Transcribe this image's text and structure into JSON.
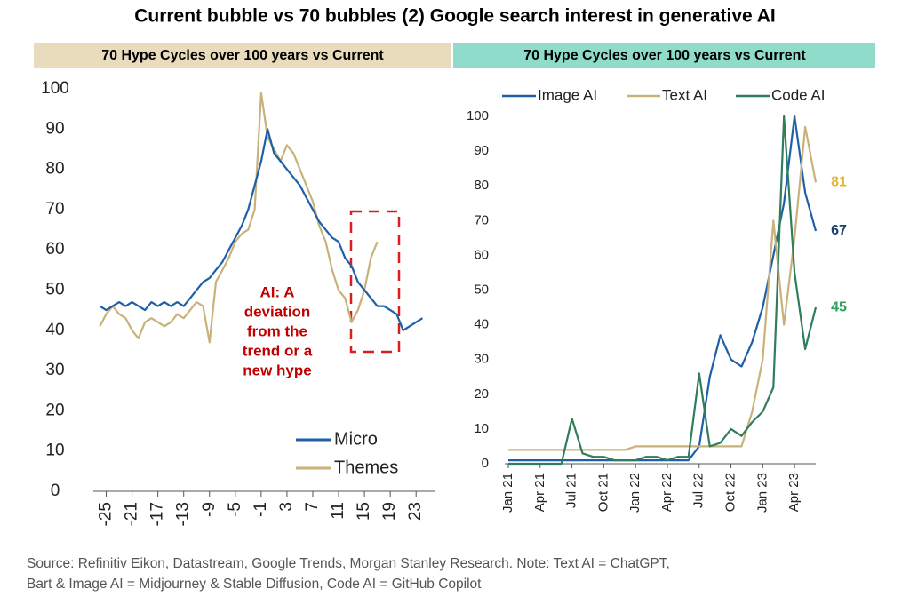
{
  "title": "Current bubble vs 70 bubbles (2) Google search interest in generative AI",
  "source": [
    "Source: Refinitiv Eikon, Datastream, Google Trends, Morgan Stanley Research. Note: Text AI = ChatGPT,",
    "Bart & Image AI = Midjourney & Stable Diffusion, Code AI = GitHub Copilot"
  ],
  "chart_data": [
    {
      "type": "line",
      "title": "70 Hype Cycles over 100 years vs Current",
      "annotation": [
        "AI: A",
        "deviation",
        "from the",
        "trend or a",
        "new hype"
      ],
      "x": [
        -26,
        -25,
        -24,
        -23,
        -22,
        -21,
        -20,
        -19,
        -18,
        -17,
        -16,
        -15,
        -14,
        -13,
        -12,
        -11,
        -10,
        -9,
        -8,
        -7,
        -6,
        -5,
        -4,
        -3,
        -2,
        -1,
        0,
        1,
        2,
        3,
        4,
        5,
        6,
        7,
        8,
        9,
        10,
        11,
        12,
        13,
        14,
        15,
        16,
        17,
        18,
        19,
        20,
        21,
        22,
        23,
        24
      ],
      "series": [
        {
          "name": "Micro",
          "color": "#1f5fa8",
          "values": [
            46,
            45,
            46,
            47,
            46,
            47,
            46,
            45,
            47,
            46,
            47,
            46,
            47,
            46,
            48,
            50,
            52,
            53,
            55,
            57,
            60,
            63,
            66,
            70,
            76,
            82,
            90,
            84,
            82,
            80,
            78,
            76,
            73,
            70,
            67,
            65,
            63,
            62,
            58,
            56,
            52,
            50,
            48,
            46,
            46,
            45,
            44,
            40,
            41,
            42,
            43
          ]
        },
        {
          "name": "Themes",
          "color": "#c9b27a",
          "values": [
            41,
            44,
            46,
            44,
            43,
            40,
            38,
            42,
            43,
            42,
            41,
            42,
            44,
            43,
            45,
            47,
            46,
            37,
            52,
            55,
            58,
            62,
            64,
            65,
            70,
            99,
            88,
            85,
            82,
            86,
            84,
            80,
            76,
            72,
            66,
            62,
            55,
            50,
            48,
            42,
            45,
            50,
            58,
            62,
            null,
            null,
            null,
            null,
            null,
            null,
            null
          ]
        }
      ],
      "xlim": [
        -27,
        26
      ],
      "ylim": [
        0,
        100
      ],
      "xticks": [
        -25,
        -21,
        -17,
        -13,
        -9,
        -5,
        -1,
        3,
        7,
        11,
        15,
        19,
        23
      ],
      "yticks": [
        0,
        10,
        20,
        30,
        40,
        50,
        60,
        70,
        80,
        90,
        100
      ]
    },
    {
      "type": "line",
      "title": "70 Hype Cycles over 100 years vs Current",
      "categories": [
        "Jan 21",
        null,
        null,
        "Apr 21",
        null,
        null,
        "Jul 21",
        null,
        null,
        "Oct 21",
        null,
        null,
        "Jan 22",
        null,
        null,
        "Apr 22",
        null,
        null,
        "Jul 22",
        null,
        null,
        "Oct 22",
        null,
        null,
        "Jan 23",
        null,
        null,
        "Apr 23",
        null,
        null
      ],
      "series": [
        {
          "name": "Image AI",
          "color": "#1f5fa8",
          "label_color": "#1a3e6e",
          "values": [
            1,
            1,
            1,
            1,
            1,
            1,
            1,
            1,
            1,
            1,
            1,
            1,
            1,
            1,
            1,
            1,
            1,
            1,
            5,
            25,
            37,
            30,
            28,
            35,
            45,
            60,
            75,
            100,
            78,
            67
          ]
        },
        {
          "name": "Text AI",
          "color": "#c9b27a",
          "label_color": "#e5b630",
          "values": [
            4,
            4,
            4,
            4,
            4,
            4,
            4,
            4,
            4,
            4,
            4,
            4,
            5,
            5,
            5,
            5,
            5,
            5,
            5,
            5,
            5,
            5,
            5,
            15,
            30,
            70,
            40,
            65,
            97,
            81
          ]
        },
        {
          "name": "Code AI",
          "color": "#2e7d5b",
          "label_color": "#2ca05a",
          "values": [
            0,
            0,
            0,
            0,
            0,
            0,
            13,
            3,
            2,
            2,
            1,
            1,
            1,
            2,
            2,
            1,
            2,
            2,
            26,
            5,
            6,
            10,
            8,
            12,
            15,
            22,
            100,
            55,
            33,
            45
          ]
        }
      ],
      "ylim": [
        0,
        100
      ],
      "yticks": [
        0,
        10,
        20,
        30,
        40,
        50,
        60,
        70,
        80,
        90,
        100
      ]
    }
  ]
}
